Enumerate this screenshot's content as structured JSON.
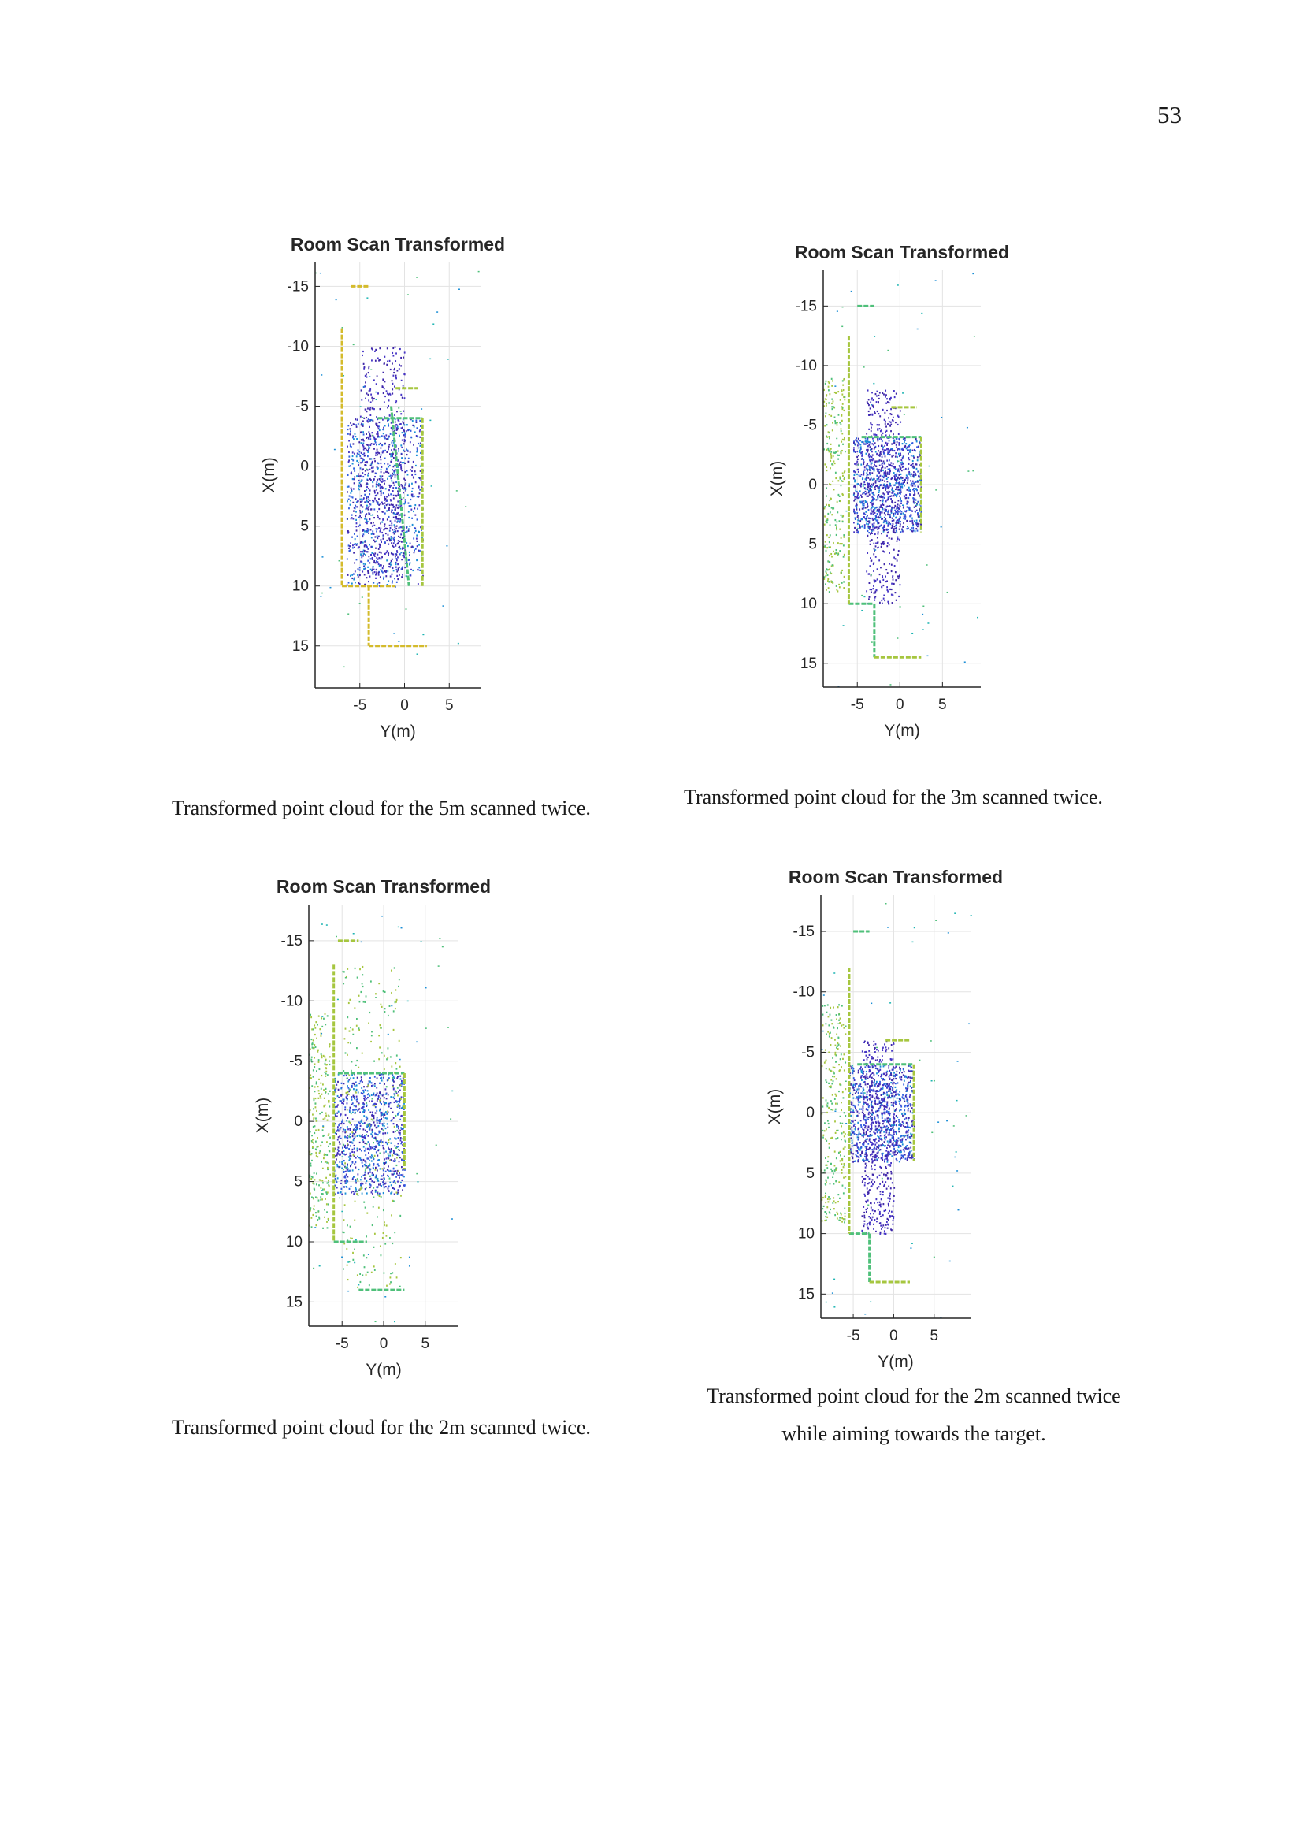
{
  "page": {
    "number": "53"
  },
  "figures": [
    {
      "chart_data": {
        "type": "scatter",
        "title": "Room Scan Transformed",
        "xlabel": "Y(m)",
        "ylabel": "X(m)",
        "xlim": [
          -10,
          8.5
        ],
        "ylim": [
          -17,
          18.5
        ],
        "y_reversed": true,
        "grid": true,
        "xticks": [
          -5,
          0,
          5
        ],
        "yticks": [
          -15,
          -10,
          -5,
          0,
          5,
          10,
          15
        ],
        "colormap": "parula",
        "walls": [
          {
            "x": [
              -7,
              -1
            ],
            "y": [
              10,
              10
            ]
          },
          {
            "x": [
              -7,
              -7
            ],
            "y": [
              -11.5,
              10
            ]
          },
          {
            "x": [
              -4,
              -4
            ],
            "y": [
              10,
              15
            ]
          },
          {
            "x": [
              -4,
              2.5
            ],
            "y": [
              15,
              15
            ]
          },
          {
            "x": [
              -6,
              -4
            ],
            "y": [
              -15,
              -15
            ]
          },
          {
            "x": [
              -1,
              1.5
            ],
            "y": [
              -6.5,
              -6.5
            ]
          },
          {
            "x": [
              -3,
              2
            ],
            "y": [
              -4,
              -4
            ]
          },
          {
            "x": [
              2,
              2
            ],
            "y": [
              -4,
              10
            ]
          },
          {
            "x": [
              -1.5,
              0.5
            ],
            "y": [
              -5,
              10
            ]
          }
        ],
        "dense_regions": [
          {
            "label": "room interior",
            "x": [
              -6.5,
              2
            ],
            "y": [
              -4,
              10
            ]
          },
          {
            "label": "corridor spray",
            "x": [
              -5,
              0
            ],
            "y": [
              -10,
              9
            ]
          }
        ]
      },
      "caption": [
        "Transformed point cloud for the 5m scanned twice."
      ]
    },
    {
      "chart_data": {
        "type": "scatter",
        "title": "Room Scan Transformed",
        "xlabel": "Y(m)",
        "ylabel": "X(m)",
        "xlim": [
          -9,
          9.5
        ],
        "ylim": [
          -18,
          17
        ],
        "y_reversed": true,
        "grid": true,
        "xticks": [
          -5,
          0,
          5
        ],
        "yticks": [
          -15,
          -10,
          -5,
          0,
          5,
          10,
          15
        ],
        "colormap": "parula",
        "walls": [
          {
            "x": [
              -6,
              -3
            ],
            "y": [
              10,
              10
            ]
          },
          {
            "x": [
              -6,
              -6
            ],
            "y": [
              -12.5,
              10
            ]
          },
          {
            "x": [
              -3,
              -3
            ],
            "y": [
              10,
              14.5
            ]
          },
          {
            "x": [
              -3,
              2.5
            ],
            "y": [
              14.5,
              14.5
            ]
          },
          {
            "x": [
              -5,
              -3
            ],
            "y": [
              -15,
              -15
            ]
          },
          {
            "x": [
              -1,
              2
            ],
            "y": [
              -6.5,
              -6.5
            ]
          },
          {
            "x": [
              -4.5,
              2.5
            ],
            "y": [
              -4,
              -4
            ]
          },
          {
            "x": [
              2.5,
              2.5
            ],
            "y": [
              -4,
              4
            ]
          }
        ],
        "dense_regions": [
          {
            "label": "room interior",
            "x": [
              -5.5,
              2.5
            ],
            "y": [
              -4,
              4
            ]
          },
          {
            "label": "corridor spray",
            "x": [
              -4,
              0
            ],
            "y": [
              -8,
              10
            ]
          },
          {
            "label": "outer green points",
            "x": [
              -9,
              -6.5
            ],
            "y": [
              -9,
              9
            ]
          }
        ]
      },
      "caption": [
        "Transformed point cloud for the 3m scanned twice."
      ]
    },
    {
      "chart_data": {
        "type": "scatter",
        "title": "Room Scan Transformed",
        "xlabel": "Y(m)",
        "ylabel": "X(m)",
        "xlim": [
          -9,
          9
        ],
        "ylim": [
          -18,
          17
        ],
        "y_reversed": true,
        "grid": true,
        "xticks": [
          -5,
          0,
          5
        ],
        "yticks": [
          -15,
          -10,
          -5,
          0,
          5,
          10,
          15
        ],
        "colormap": "parula",
        "walls": [
          {
            "x": [
              -6,
              -2
            ],
            "y": [
              10,
              10
            ]
          },
          {
            "x": [
              -6,
              -6
            ],
            "y": [
              -13,
              10
            ]
          },
          {
            "x": [
              -3,
              2.5
            ],
            "y": [
              14,
              14
            ]
          },
          {
            "x": [
              -5.5,
              -3
            ],
            "y": [
              -15,
              -15
            ]
          },
          {
            "x": [
              -5.5,
              2.5
            ],
            "y": [
              -4,
              -4
            ]
          },
          {
            "x": [
              2.5,
              2.5
            ],
            "y": [
              -4,
              4
            ]
          }
        ],
        "dense_regions": [
          {
            "label": "room interior",
            "x": [
              -6,
              2.5
            ],
            "y": [
              -4,
              6
            ]
          },
          {
            "label": "green hatching",
            "x": [
              -5,
              2
            ],
            "y": [
              -13,
              14
            ]
          },
          {
            "label": "outer green points",
            "x": [
              -9,
              -6.5
            ],
            "y": [
              -9,
              9
            ]
          }
        ]
      },
      "caption": [
        "Transformed point cloud for the 2m scanned twice."
      ]
    },
    {
      "chart_data": {
        "type": "scatter",
        "title": "Room Scan Transformed",
        "xlabel": "Y(m)",
        "ylabel": "X(m)",
        "xlim": [
          -9,
          9.5
        ],
        "ylim": [
          -18,
          17
        ],
        "y_reversed": true,
        "grid": true,
        "xticks": [
          -5,
          0,
          5
        ],
        "yticks": [
          -15,
          -10,
          -5,
          0,
          5,
          10,
          15
        ],
        "colormap": "parula",
        "walls": [
          {
            "x": [
              -5.5,
              -3
            ],
            "y": [
              10,
              10
            ]
          },
          {
            "x": [
              -5.5,
              -5.5
            ],
            "y": [
              -12,
              10
            ]
          },
          {
            "x": [
              -3,
              -3
            ],
            "y": [
              10,
              14
            ]
          },
          {
            "x": [
              -3,
              2
            ],
            "y": [
              14,
              14
            ]
          },
          {
            "x": [
              -5,
              -3
            ],
            "y": [
              -15,
              -15
            ]
          },
          {
            "x": [
              -1,
              2
            ],
            "y": [
              -6,
              -6
            ]
          },
          {
            "x": [
              -4.5,
              2.5
            ],
            "y": [
              -4,
              -4
            ]
          },
          {
            "x": [
              2.5,
              2.5
            ],
            "y": [
              -4,
              4
            ]
          }
        ],
        "dense_regions": [
          {
            "label": "room interior",
            "x": [
              -5.5,
              2.5
            ],
            "y": [
              -4,
              4
            ]
          },
          {
            "label": "corridor spray",
            "x": [
              -4,
              0
            ],
            "y": [
              -6,
              10
            ]
          },
          {
            "label": "outer green points",
            "x": [
              -9,
              -6
            ],
            "y": [
              -9,
              9
            ]
          }
        ]
      },
      "caption": [
        "Transformed point cloud for the 2m scanned twice",
        "while aiming towards the target."
      ]
    }
  ]
}
